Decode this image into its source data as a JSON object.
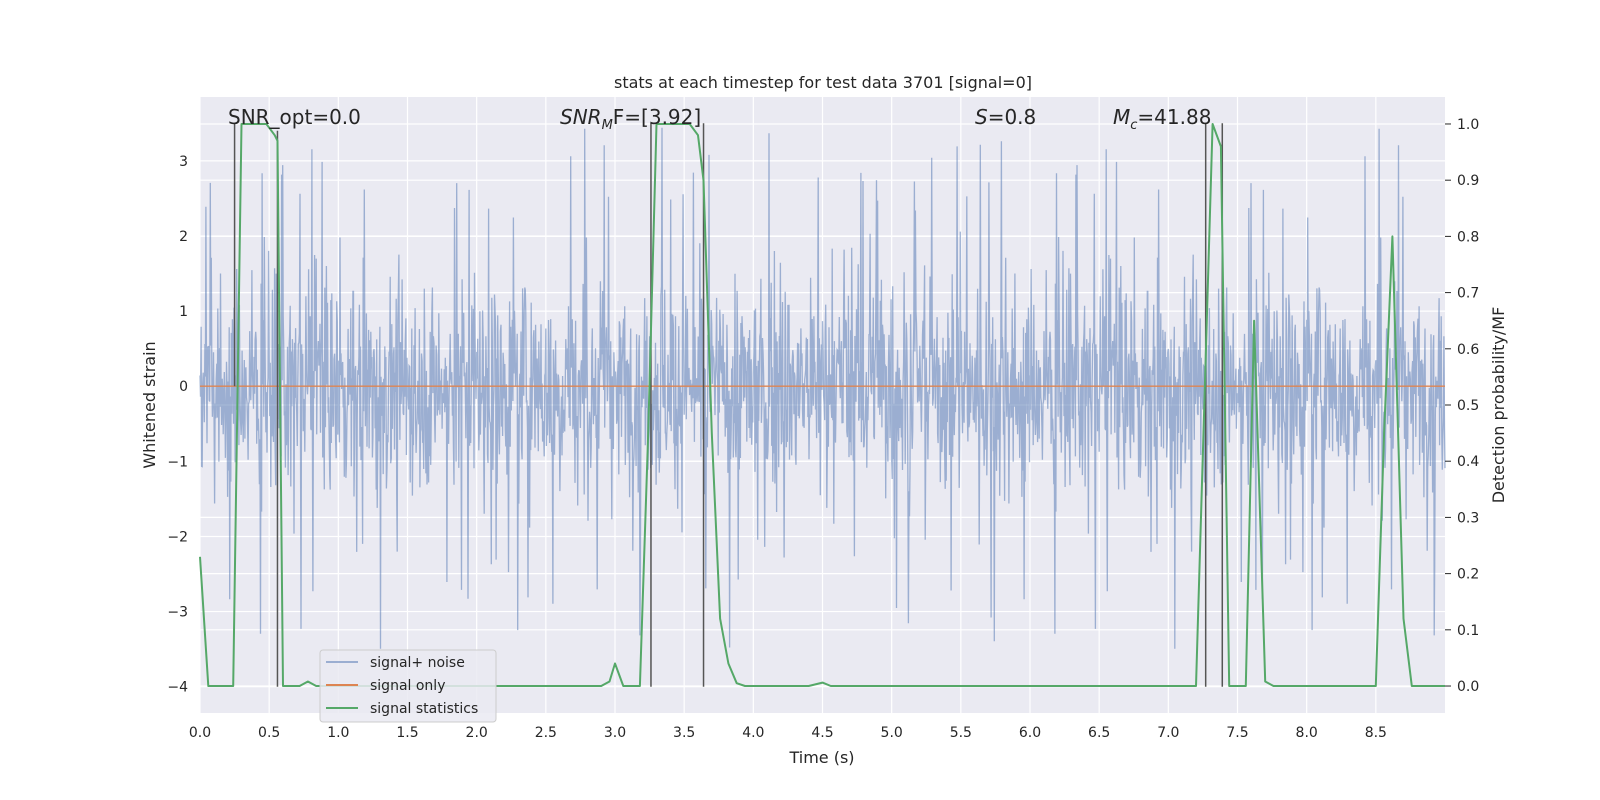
{
  "chart_data": {
    "type": "line",
    "title": "stats at each timestep for test data 3701 [signal=0]",
    "xlabel": "Time (s)",
    "ylabel": "Whitened strain",
    "y2label": "Detection probability/MF",
    "xlim": [
      0,
      9.0
    ],
    "ylim": [
      -4.35,
      3.85
    ],
    "y2lim": [
      -0.048,
      1.048
    ],
    "xticks": [
      0.0,
      0.5,
      1.0,
      1.5,
      2.0,
      2.5,
      3.0,
      3.5,
      4.0,
      4.5,
      5.0,
      5.5,
      6.0,
      6.5,
      7.0,
      7.5,
      8.0,
      8.5
    ],
    "yticks": [
      -4,
      -3,
      -2,
      -1,
      0,
      1,
      2,
      3
    ],
    "y2ticks": [
      0.0,
      0.1,
      0.2,
      0.3,
      0.4,
      0.5,
      0.6,
      0.7,
      0.8,
      0.9,
      1.0
    ],
    "grid": true,
    "legend_position": "lower-left",
    "colors": {
      "background": "#eaeaf2",
      "grid": "#ffffff",
      "noise": "#4c72b0",
      "signal": "#dd8452",
      "stats": "#55a868",
      "marker": "#555555"
    },
    "annotations": {
      "snr_opt": "SNR_opt=0.0",
      "snr_mf_base": "SNR",
      "snr_mf_sub": "M",
      "snr_mf_rest": "F=[3.92]",
      "s_italic": "S",
      "s_rest": "=0.8",
      "mc_base": "M",
      "mc_sub": "c",
      "mc_rest": "=41.88"
    },
    "series": [
      {
        "name": "signal+ noise",
        "kind": "noise",
        "amplitude_core": 1.25,
        "amplitude_max": 3.5,
        "sample_rate": 256
      },
      {
        "name": "signal only",
        "kind": "flat",
        "y": 0
      },
      {
        "name": "signal statistics",
        "axis": "right",
        "x": [
          0.0,
          0.06,
          0.12,
          0.18,
          0.24,
          0.3,
          0.36,
          0.42,
          0.48,
          0.54,
          0.56,
          0.6,
          0.66,
          0.72,
          0.78,
          0.84,
          0.9,
          0.96,
          1.2,
          1.8,
          2.4,
          2.9,
          2.96,
          3.0,
          3.06,
          3.12,
          3.18,
          3.24,
          3.3,
          3.36,
          3.42,
          3.48,
          3.54,
          3.6,
          3.64,
          3.7,
          3.76,
          3.82,
          3.88,
          3.94,
          4.0,
          4.4,
          4.5,
          4.56,
          4.8,
          5.5,
          6.5,
          7.2,
          7.26,
          7.32,
          7.38,
          7.44,
          7.5,
          7.56,
          7.62,
          7.7,
          7.76,
          7.8,
          8.1,
          8.3,
          8.5,
          8.56,
          8.62,
          8.7,
          8.76,
          8.82,
          9.0
        ],
        "y": [
          0.23,
          0.0,
          0.0,
          0.0,
          0.0,
          1.0,
          1.0,
          1.0,
          1.0,
          0.98,
          0.97,
          0.0,
          0.0,
          0.0,
          0.008,
          0.0,
          0.0,
          0.0,
          0.0,
          0.0,
          0.0,
          0.0,
          0.008,
          0.04,
          0.0,
          0.0,
          0.0,
          0.45,
          1.0,
          1.0,
          1.0,
          1.0,
          1.0,
          0.98,
          0.9,
          0.45,
          0.12,
          0.04,
          0.005,
          0.0,
          0.0,
          0.0,
          0.006,
          0.0,
          0.0,
          0.0,
          0.0,
          0.0,
          0.5,
          1.0,
          0.96,
          0.0,
          0.0,
          0.0,
          0.65,
          0.008,
          0.0,
          0.0,
          0.0,
          0.0,
          0.0,
          0.45,
          0.8,
          0.12,
          0.0,
          0.0,
          0.0
        ]
      }
    ],
    "markers": [
      {
        "x": 0.25,
        "y_top": 0.0,
        "y_bottom": 3.5
      },
      {
        "x": 0.56,
        "y_top": -4.0,
        "y_bottom": 3.4
      },
      {
        "x": 3.26,
        "y_top": -4.0,
        "y_bottom": 3.5
      },
      {
        "x": 3.64,
        "y_top": -4.0,
        "y_bottom": 3.5
      },
      {
        "x": 7.27,
        "y_top": -4.0,
        "y_bottom": 3.5
      },
      {
        "x": 7.39,
        "y_top": -4.0,
        "y_bottom": 3.5
      }
    ]
  }
}
